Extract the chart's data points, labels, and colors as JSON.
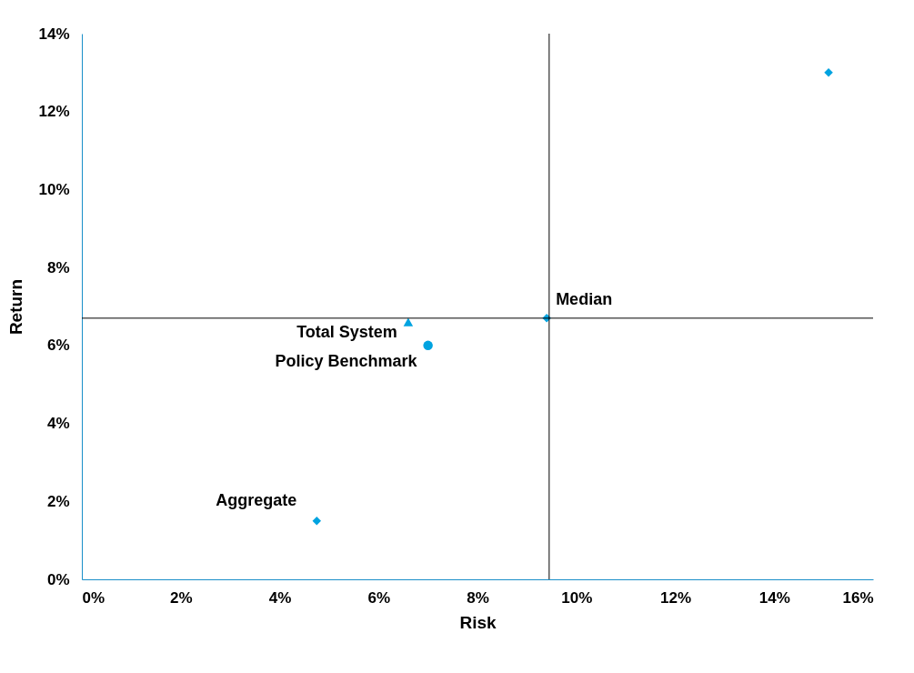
{
  "chart_data": {
    "type": "scatter",
    "xlabel": "Risk",
    "ylabel": "Return",
    "xlim": [
      0,
      16
    ],
    "ylim": [
      0,
      14
    ],
    "xticks": [
      {
        "value": 0,
        "label": "0%"
      },
      {
        "value": 2,
        "label": "2%"
      },
      {
        "value": 4,
        "label": "4%"
      },
      {
        "value": 6,
        "label": "6%"
      },
      {
        "value": 8,
        "label": "8%"
      },
      {
        "value": 10,
        "label": "10%"
      },
      {
        "value": 12,
        "label": "12%"
      },
      {
        "value": 14,
        "label": "14%"
      },
      {
        "value": 16,
        "label": "16%"
      }
    ],
    "yticks": [
      {
        "value": 0,
        "label": "0%"
      },
      {
        "value": 2,
        "label": "2%"
      },
      {
        "value": 4,
        "label": "4%"
      },
      {
        "value": 6,
        "label": "6%"
      },
      {
        "value": 8,
        "label": "8%"
      },
      {
        "value": 10,
        "label": "10%"
      },
      {
        "value": 12,
        "label": "12%"
      },
      {
        "value": 14,
        "label": "14%"
      }
    ],
    "grid": false,
    "legend": false,
    "series": [
      {
        "color": "#00a3e0",
        "marker": "diamond",
        "x": [
          15.1
        ],
        "values": [
          13.0
        ]
      },
      {
        "name": "Median",
        "color": "#00a3e0",
        "marker": "diamond",
        "x": [
          9.4
        ],
        "values": [
          6.7
        ]
      },
      {
        "name": "Total System",
        "color": "#00a3e0",
        "marker": "triangle",
        "x": [
          6.6
        ],
        "values": [
          6.6
        ]
      },
      {
        "name": "Policy Benchmark",
        "color": "#00a3e0",
        "marker": "circle",
        "x": [
          7.0
        ],
        "values": [
          6.0
        ]
      },
      {
        "name": "Aggregate",
        "color": "#00a3e0",
        "marker": "diamond",
        "x": [
          4.75
        ],
        "values": [
          1.5
        ]
      }
    ],
    "ref_lines": [
      {
        "axis": "x",
        "value": 9.45,
        "color": "#000000"
      },
      {
        "axis": "y",
        "value": 6.7,
        "color": "#000000"
      }
    ]
  }
}
